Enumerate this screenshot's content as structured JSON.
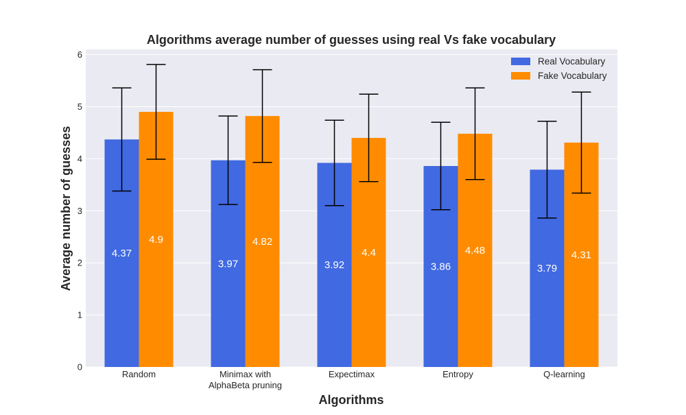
{
  "chart_data": {
    "type": "bar",
    "title": "Algorithms average number of guesses using real Vs fake vocabulary",
    "xlabel": "Algorithms",
    "ylabel": "Average number of guesses",
    "ylim": [
      0,
      6.1
    ],
    "yticks": [
      0,
      1,
      2,
      3,
      4,
      5,
      6
    ],
    "grid": true,
    "legend_position": "top-right",
    "categories": [
      [
        "Random"
      ],
      [
        "Minimax with",
        "AlphaBeta pruning"
      ],
      [
        "Expectimax"
      ],
      [
        "Entropy"
      ],
      [
        "Q-learning"
      ]
    ],
    "series": [
      {
        "name": "Real Vocabulary",
        "color": "#4169e1",
        "values": [
          4.37,
          3.97,
          3.92,
          3.86,
          3.79
        ],
        "labels": [
          "4.37",
          "3.97",
          "3.92",
          "3.86",
          "3.79"
        ],
        "error": [
          0.99,
          0.85,
          0.82,
          0.84,
          0.93
        ]
      },
      {
        "name": "Fake Vocabulary",
        "color": "#ff8c00",
        "values": [
          4.9,
          4.82,
          4.4,
          4.48,
          4.31
        ],
        "labels": [
          "4.9",
          "4.82",
          "4.4",
          "4.48",
          "4.31"
        ],
        "error": [
          0.91,
          0.89,
          0.84,
          0.88,
          0.97
        ]
      }
    ],
    "background_color": "#eaeaf2",
    "grid_color": "#ffffff"
  }
}
